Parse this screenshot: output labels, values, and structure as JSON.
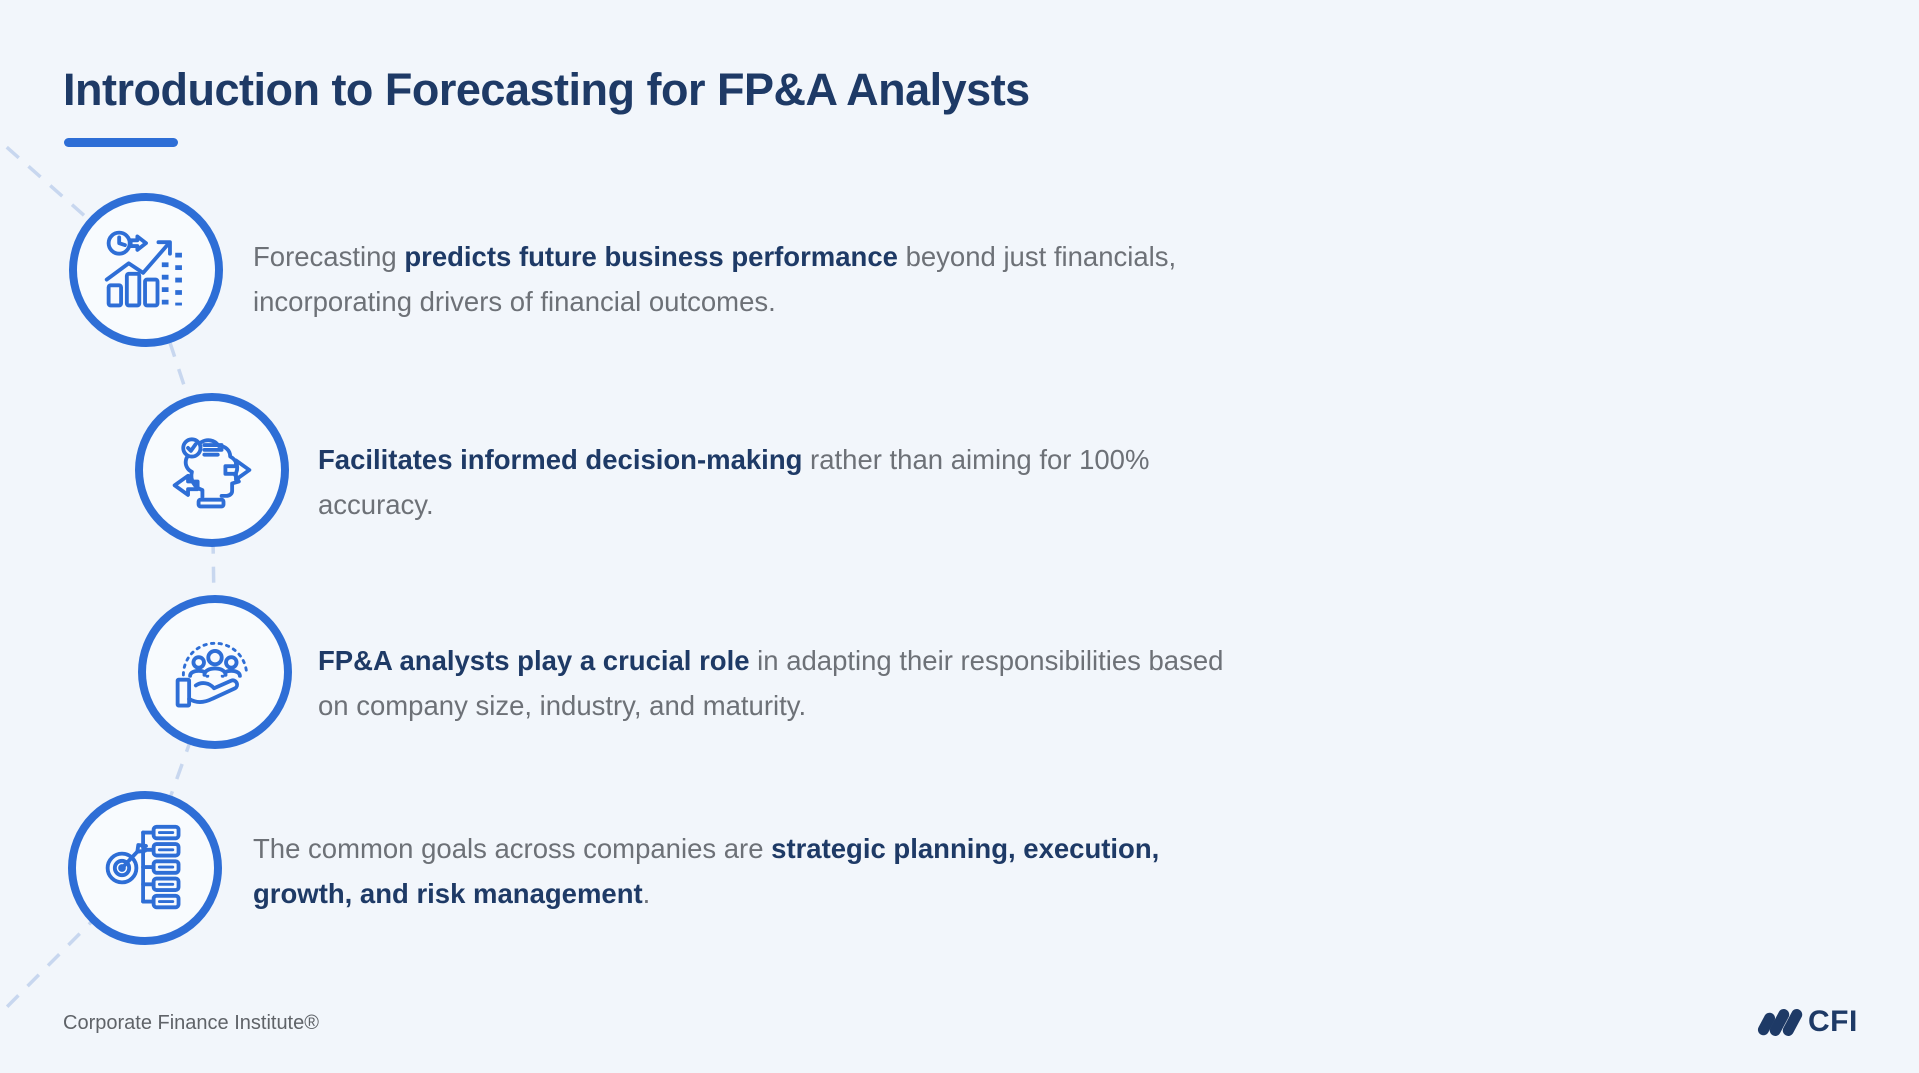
{
  "slide": {
    "title": "Introduction to Forecasting for FP&A Analysts",
    "footer": "Corporate Finance Institute®",
    "brand": "CFI"
  },
  "colors": {
    "background": "#f2f6fb",
    "navy": "#1e3a66",
    "accent_blue": "#2e6ed6",
    "body_gray": "#6d7177",
    "dash_line": "#c8d7ef"
  },
  "rows": [
    {
      "icon": "forecast-trend-chart-icon",
      "segments": [
        {
          "text": "Forecasting ",
          "bold": false
        },
        {
          "text": "predicts future business performance",
          "bold": true
        },
        {
          "text": " beyond just financials, incorporating drivers of financial outcomes.",
          "bold": false
        }
      ]
    },
    {
      "icon": "informed-decision-head-icon",
      "segments": [
        {
          "text": "Facilitates informed decision-making",
          "bold": true
        },
        {
          "text": " rather than aiming for 100% accuracy.",
          "bold": false
        }
      ]
    },
    {
      "icon": "team-support-hand-icon",
      "segments": [
        {
          "text": "FP&A analysts play a crucial role",
          "bold": true
        },
        {
          "text": " in adapting their responsibilities based on company size, industry, and maturity.",
          "bold": false
        }
      ]
    },
    {
      "icon": "strategic-goals-target-icon",
      "segments": [
        {
          "text": "The common goals across companies are ",
          "bold": false
        },
        {
          "text": "strategic planning, execution, growth, and risk management",
          "bold": true
        },
        {
          "text": ".",
          "bold": false
        }
      ]
    }
  ]
}
